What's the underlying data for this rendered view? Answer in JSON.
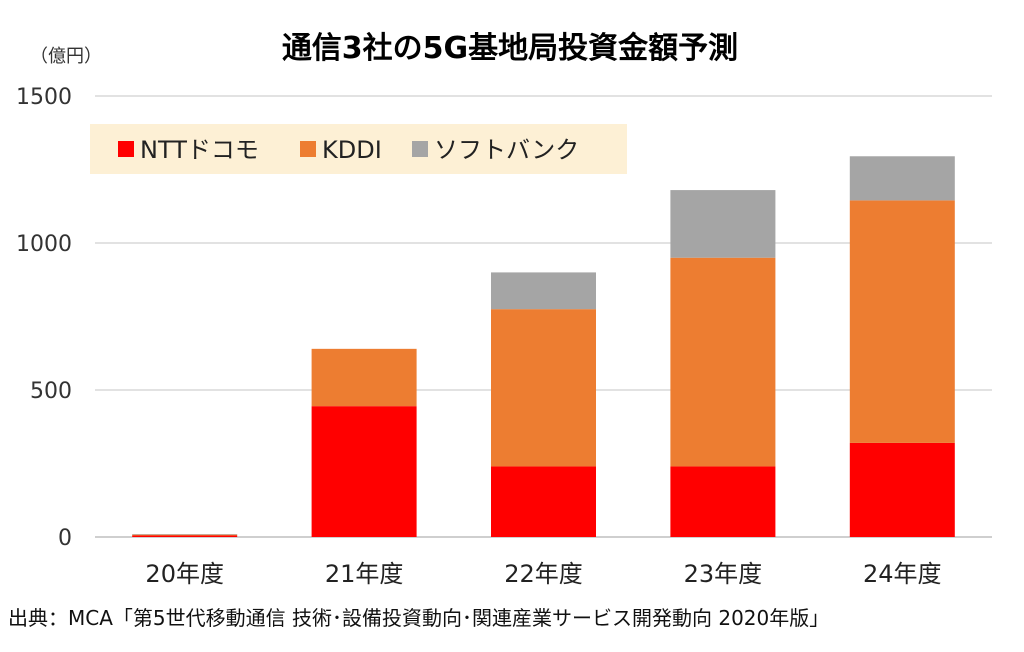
{
  "chart_data": {
    "type": "bar",
    "stacked": true,
    "title": "通信3社の5G基地局投資金額予測",
    "ylabel": "（億円）",
    "xlabel": "",
    "ylim": [
      0,
      1500
    ],
    "yticks": [
      0,
      500,
      1000,
      1500
    ],
    "grid": true,
    "legend_position": "top-left",
    "legend_background": "#fdf0d5",
    "categories": [
      "20年度",
      "21年度",
      "22年度",
      "23年度",
      "24年度"
    ],
    "series": [
      {
        "name": "NTTドコモ",
        "color": "#ff0000",
        "values": [
          5,
          445,
          240,
          240,
          320
        ]
      },
      {
        "name": "KDDI",
        "color": "#ed7d31",
        "values": [
          3,
          195,
          535,
          710,
          825
        ]
      },
      {
        "name": "ソフトバンク",
        "color": "#a5a5a5",
        "values": [
          2,
          0,
          125,
          230,
          150
        ]
      }
    ],
    "source": "出典：MCA「第5世代移動通信 技術･設備投資動向･関連産業サービス開発動向 2020年版」"
  }
}
